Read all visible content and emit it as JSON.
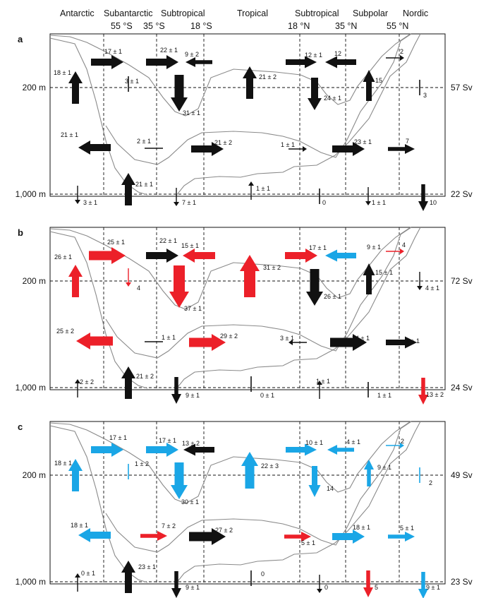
{
  "colors": {
    "black": "#111111",
    "red": "#ec2029",
    "blue": "#1aa6e6",
    "contour": "#8a8a8a",
    "grid": "#111111"
  },
  "regions": [
    "Antarctic",
    "Subantarctic",
    "Subtropical",
    "Tropical",
    "Subtropical",
    "Subpolar",
    "Nordic"
  ],
  "latitudes": [
    "55 °S",
    "35 °S",
    "18 °S",
    "18 °N",
    "35 °N",
    "55 °N"
  ],
  "depth_labels": {
    "upper": "200 m",
    "lower": "1,000 m"
  },
  "panels": [
    {
      "label": "a",
      "total_upper": "57 Sv",
      "total_lower": "22 Sv",
      "arrows": [
        {
          "t": "18 ± 1",
          "c": "black",
          "d": "up",
          "s": 4
        },
        {
          "t": "17 ± 1",
          "c": "black",
          "d": "right",
          "s": 4
        },
        {
          "t": "3 ± 1",
          "c": "black",
          "d": "line-v",
          "s": 1
        },
        {
          "t": "22 ± 1",
          "c": "black",
          "d": "right",
          "s": 4
        },
        {
          "t": "9 ± 2",
          "c": "black",
          "d": "left",
          "s": 2
        },
        {
          "t": "31 ± 1",
          "c": "black",
          "d": "down",
          "s": 5
        },
        {
          "t": "21 ± 2",
          "c": "black",
          "d": "up",
          "s": 4
        },
        {
          "t": "12 ± 1",
          "c": "black",
          "d": "right",
          "s": 3
        },
        {
          "t": "12",
          "c": "black",
          "d": "left",
          "s": 3
        },
        {
          "t": "24 ± 1",
          "c": "black",
          "d": "down",
          "s": 4
        },
        {
          "t": "15",
          "c": "black",
          "d": "up",
          "s": 3
        },
        {
          "t": "2",
          "c": "black",
          "d": "right",
          "s": 1
        },
        {
          "t": "3",
          "c": "black",
          "d": "line-v",
          "s": 1
        },
        {
          "t": "21 ± 1",
          "c": "black",
          "d": "left",
          "s": 4
        },
        {
          "t": "2 ± 1",
          "c": "black",
          "d": "line-h",
          "s": 1
        },
        {
          "t": "21 ± 2",
          "c": "black",
          "d": "right",
          "s": 4
        },
        {
          "t": "1 ± 1",
          "c": "black",
          "d": "right",
          "s": 1
        },
        {
          "t": "23 ± 1",
          "c": "black",
          "d": "right",
          "s": 4
        },
        {
          "t": "7",
          "c": "black",
          "d": "right",
          "s": 2
        },
        {
          "t": "3 ± 1",
          "c": "black",
          "d": "down",
          "s": 1
        },
        {
          "t": "21 ± 1",
          "c": "black",
          "d": "up",
          "s": 4
        },
        {
          "t": "7 ± 1",
          "c": "black",
          "d": "down",
          "s": 1
        },
        {
          "t": "1 ± 1",
          "c": "black",
          "d": "up",
          "s": 1
        },
        {
          "t": "0",
          "c": "black",
          "d": "line-v",
          "s": 1
        },
        {
          "t": "1 ± 1",
          "c": "black",
          "d": "down",
          "s": 1
        },
        {
          "t": "10",
          "c": "black",
          "d": "down",
          "s": 2
        }
      ]
    },
    {
      "label": "b",
      "total_upper": "72 Sv",
      "total_lower": "24 Sv",
      "arrows": [
        {
          "t": "26 ± 1",
          "c": "red",
          "d": "up",
          "s": 4
        },
        {
          "t": "25 ± 1",
          "c": "red",
          "d": "right",
          "s": 5
        },
        {
          "t": "4",
          "c": "red",
          "d": "down",
          "s": 1
        },
        {
          "t": "22 ± 1",
          "c": "black",
          "d": "right",
          "s": 4
        },
        {
          "t": "15 ± 1",
          "c": "red",
          "d": "left",
          "s": 4
        },
        {
          "t": "37 ± 1",
          "c": "red",
          "d": "down",
          "s": 6
        },
        {
          "t": "31 ± 2",
          "c": "red",
          "d": "up",
          "s": 6
        },
        {
          "t": "17 ± 1",
          "c": "red",
          "d": "right",
          "s": 4
        },
        {
          "t": "9 ± 1",
          "c": "blue",
          "d": "left",
          "s": 3
        },
        {
          "t": "26 ± 1",
          "c": "black",
          "d": "down",
          "s": 5
        },
        {
          "t": "15 ± 1",
          "c": "black",
          "d": "up",
          "s": 3
        },
        {
          "t": "4",
          "c": "red",
          "d": "right",
          "s": 1
        },
        {
          "t": "4 ± 1",
          "c": "black",
          "d": "down",
          "s": 1
        },
        {
          "t": "25 ± 2",
          "c": "red",
          "d": "left",
          "s": 5
        },
        {
          "t": "1 ± 1",
          "c": "black",
          "d": "line-h",
          "s": 1
        },
        {
          "t": "29 ± 2",
          "c": "red",
          "d": "right",
          "s": 5
        },
        {
          "t": "3 ± 1",
          "c": "black",
          "d": "left",
          "s": 1
        },
        {
          "t": "24 ± 1",
          "c": "black",
          "d": "right",
          "s": 5
        },
        {
          "t": "9 ± 1",
          "c": "black",
          "d": "right",
          "s": 3
        },
        {
          "t": "2 ± 2",
          "c": "black",
          "d": "up",
          "s": 1
        },
        {
          "t": "21 ± 2",
          "c": "black",
          "d": "up",
          "s": 4
        },
        {
          "t": "9 ± 1",
          "c": "black",
          "d": "down",
          "s": 2
        },
        {
          "t": "0 ± 1",
          "c": "black",
          "d": "line-v",
          "s": 1
        },
        {
          "t": "1 ± 1",
          "c": "black",
          "d": "up",
          "s": 1
        },
        {
          "t": "1 ± 1",
          "c": "black",
          "d": "line-v",
          "s": 1
        },
        {
          "t": "13 ± 2",
          "c": "red",
          "d": "down",
          "s": 2
        }
      ]
    },
    {
      "label": "c",
      "total_upper": "49 Sv",
      "total_lower": "23 Sv",
      "arrows": [
        {
          "t": "18 ± 1",
          "c": "blue",
          "d": "up",
          "s": 4
        },
        {
          "t": "17 ± 1",
          "c": "blue",
          "d": "right",
          "s": 4
        },
        {
          "t": "1 ± 2",
          "c": "blue",
          "d": "line-v",
          "s": 1
        },
        {
          "t": "17 ± 1",
          "c": "blue",
          "d": "right",
          "s": 4
        },
        {
          "t": "13 ± 2",
          "c": "black",
          "d": "left",
          "s": 3
        },
        {
          "t": "30 ± 1",
          "c": "blue",
          "d": "down",
          "s": 5
        },
        {
          "t": "22 ± 3",
          "c": "blue",
          "d": "up",
          "s": 5
        },
        {
          "t": "10 ± 1",
          "c": "blue",
          "d": "right",
          "s": 3
        },
        {
          "t": "4 ± 1",
          "c": "blue",
          "d": "left",
          "s": 2
        },
        {
          "t": "14",
          "c": "blue",
          "d": "down",
          "s": 3
        },
        {
          "t": "9 ± 1",
          "c": "blue",
          "d": "up",
          "s": 2
        },
        {
          "t": "2",
          "c": "blue",
          "d": "right",
          "s": 1
        },
        {
          "t": "2",
          "c": "blue",
          "d": "line-v",
          "s": 1
        },
        {
          "t": "18 ± 1",
          "c": "blue",
          "d": "left",
          "s": 4
        },
        {
          "t": "7 ± 2",
          "c": "red",
          "d": "right",
          "s": 2
        },
        {
          "t": "27 ± 2",
          "c": "black",
          "d": "right",
          "s": 5
        },
        {
          "t": "5 ± 1",
          "c": "red",
          "d": "right",
          "s": 2
        },
        {
          "t": "18 ± 1",
          "c": "blue",
          "d": "right",
          "s": 4
        },
        {
          "t": "5 ± 1",
          "c": "blue",
          "d": "right",
          "s": 2
        },
        {
          "t": "0 ± 1",
          "c": "black",
          "d": "up",
          "s": 1
        },
        {
          "t": "23 ± 1",
          "c": "black",
          "d": "up",
          "s": 4
        },
        {
          "t": "9 ± 1",
          "c": "black",
          "d": "down",
          "s": 2
        },
        {
          "t": "0",
          "c": "black",
          "d": "line-v",
          "s": 1
        },
        {
          "t": "0",
          "c": "black",
          "d": "down",
          "s": 1
        },
        {
          "t": "5",
          "c": "red",
          "d": "down",
          "s": 2
        },
        {
          "t": "9 ± 1",
          "c": "blue",
          "d": "down",
          "s": 2
        }
      ]
    }
  ]
}
